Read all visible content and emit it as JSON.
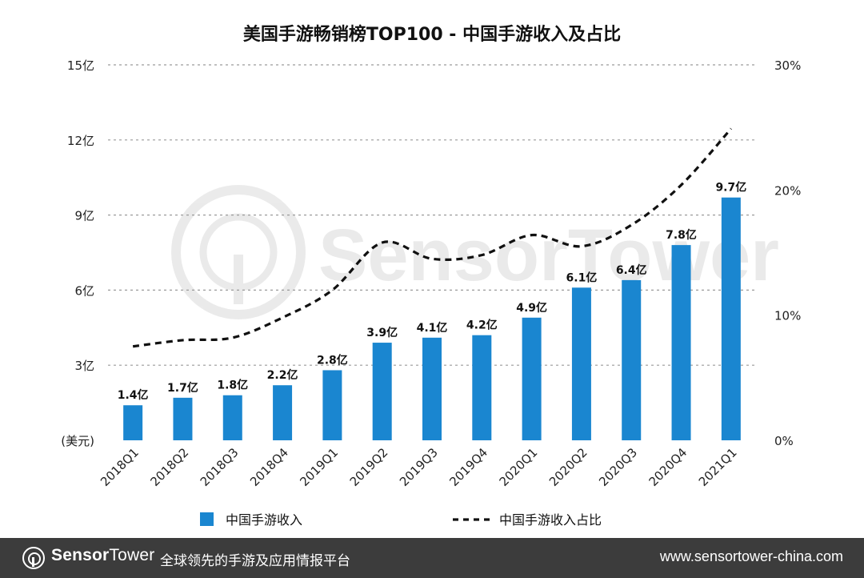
{
  "chart_data": {
    "type": "bar",
    "title": "美国手游畅销榜TOP100 - 中国手游收入及占比",
    "categories": [
      "2018Q1",
      "2018Q2",
      "2018Q3",
      "2018Q4",
      "2019Q1",
      "2019Q2",
      "2019Q3",
      "2019Q4",
      "2020Q1",
      "2020Q2",
      "2020Q3",
      "2020Q4",
      "2021Q1"
    ],
    "series": [
      {
        "name": "中国手游收入",
        "type": "bar",
        "axis": "left",
        "values": [
          1.4,
          1.7,
          1.8,
          2.2,
          2.8,
          3.9,
          4.1,
          4.2,
          4.9,
          6.1,
          6.4,
          7.8,
          9.7
        ],
        "labels": [
          "1.4亿",
          "1.7亿",
          "1.8亿",
          "2.2亿",
          "2.8亿",
          "3.9亿",
          "4.1亿",
          "4.2亿",
          "4.9亿",
          "6.1亿",
          "6.4亿",
          "7.8亿",
          "9.7亿"
        ],
        "color": "#1a86d0"
      },
      {
        "name": "中国手游收入占比",
        "type": "line",
        "axis": "right",
        "style": "dashed",
        "values": [
          7.5,
          8.0,
          8.2,
          9.8,
          12.0,
          15.8,
          14.5,
          14.8,
          16.4,
          15.5,
          17.2,
          20.4,
          24.9
        ],
        "color": "#111111"
      }
    ],
    "y_left": {
      "ylim": [
        0,
        15
      ],
      "ticks": [
        3,
        6,
        9,
        12,
        15
      ],
      "tick_labels": [
        "(美元)",
        "3亿",
        "6亿",
        "9亿",
        "12亿",
        "15亿"
      ]
    },
    "y_right": {
      "ylim": [
        0,
        30
      ],
      "ticks": [
        0,
        10,
        20,
        30
      ],
      "tick_labels": [
        "0%",
        "10%",
        "20%",
        "30%"
      ]
    },
    "grid": true,
    "legend_position": "bottom"
  },
  "watermark": "SensorTower",
  "footer": {
    "brand_bold": "Sensor",
    "brand_light": "Tower",
    "tagline": "全球领先的手游及应用情报平台",
    "url": "www.sensortower-china.com"
  }
}
